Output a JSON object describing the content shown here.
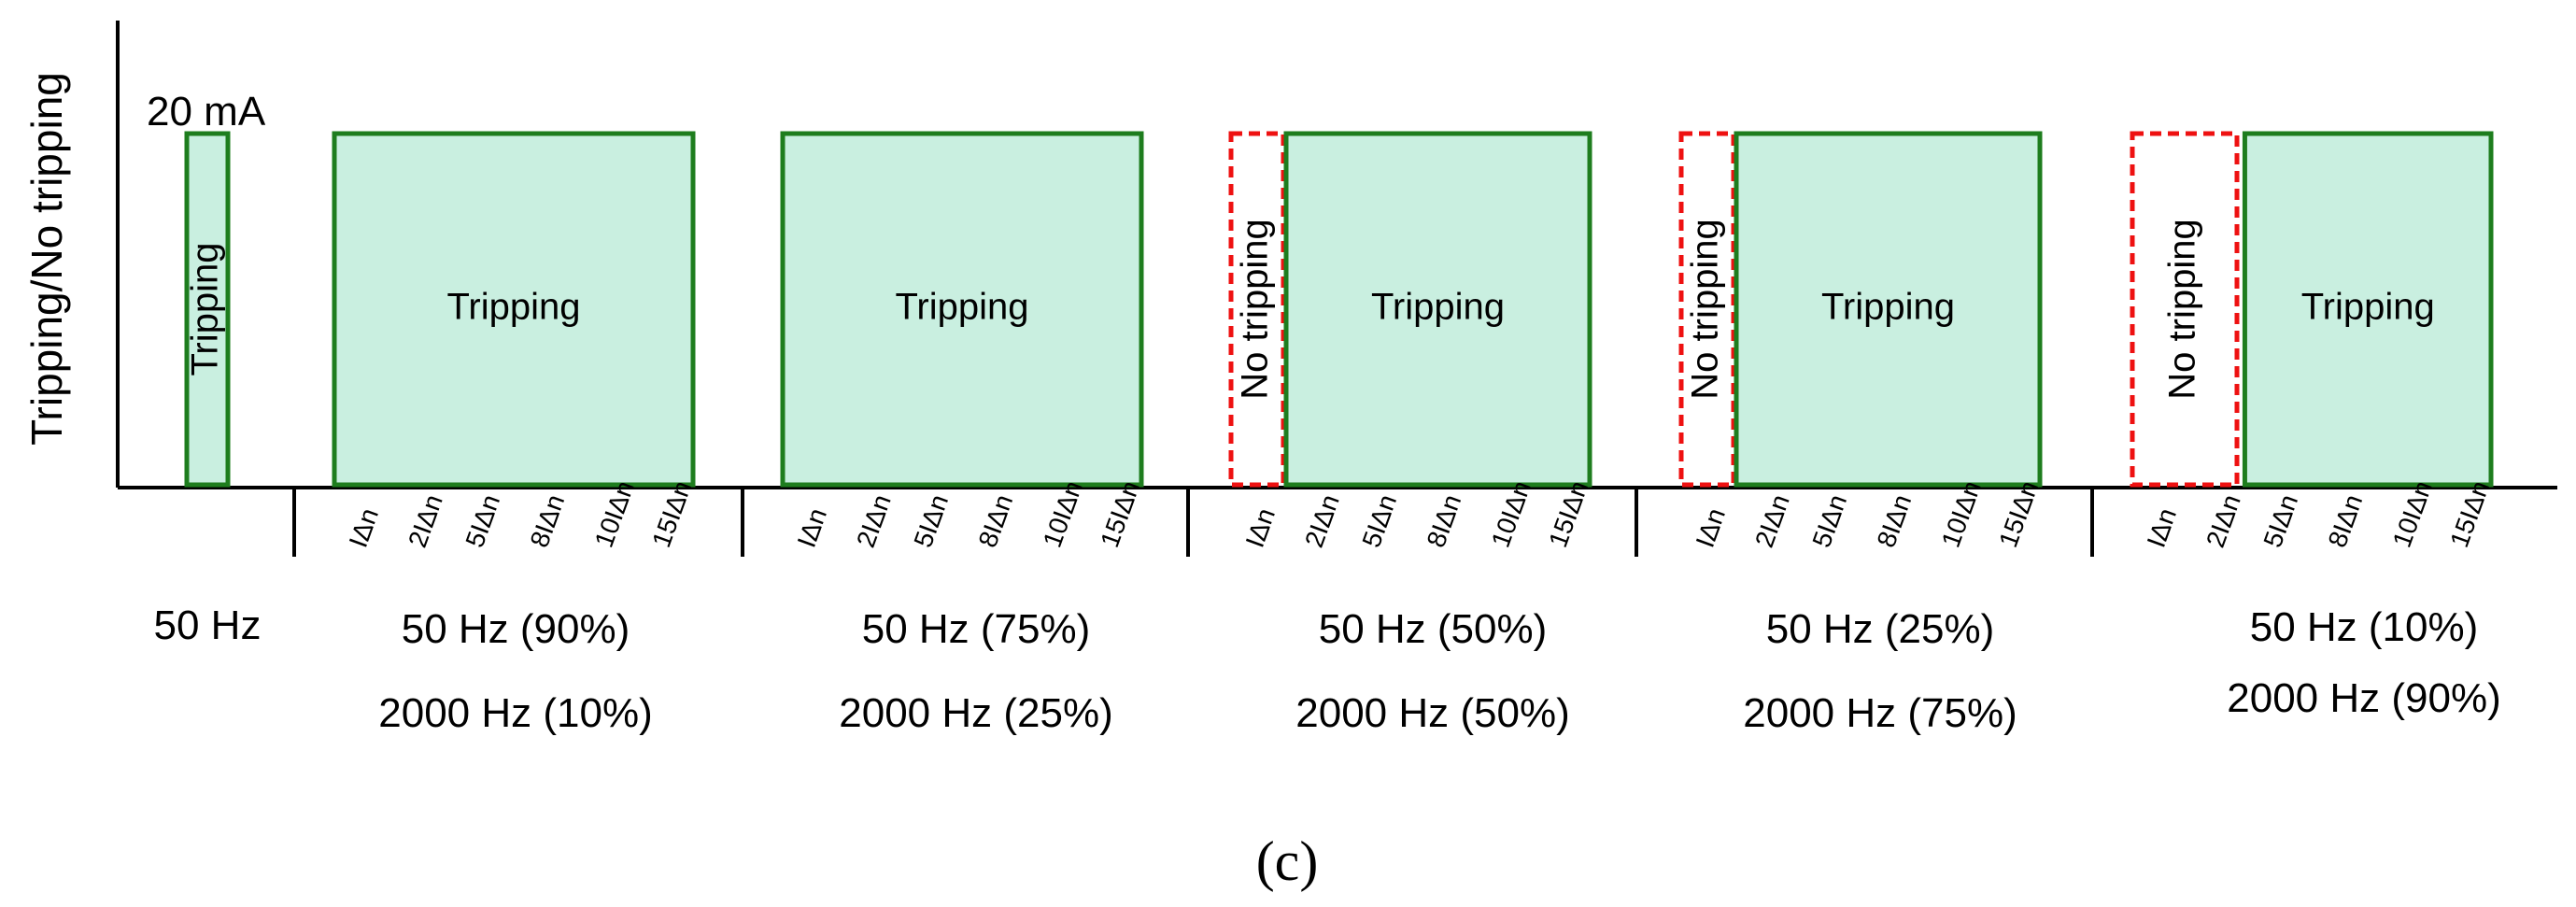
{
  "chart_data": {
    "type": "bar",
    "title": "",
    "ylabel": "Tripping/No tripping",
    "annotation": "20 mA",
    "caption": "(c)",
    "tick_labels": [
      "IΔn",
      "2IΔn",
      "5IΔn",
      "8IΔn",
      "10IΔn",
      "15IΔn"
    ],
    "groups": [
      {
        "label_lines": [
          "50 Hz"
        ],
        "ticks": [],
        "bars": [
          {
            "from": 1,
            "to": 1,
            "state": "Tripping"
          }
        ]
      },
      {
        "label_lines": [
          "50 Hz (90%)",
          "2000 Hz (10%)"
        ],
        "ticks": [
          "IΔn",
          "2IΔn",
          "5IΔn",
          "8IΔn",
          "10IΔn",
          "15IΔn"
        ],
        "bars": [
          {
            "from": 1,
            "to": 15,
            "state": "Tripping"
          }
        ]
      },
      {
        "label_lines": [
          "50 Hz (75%)",
          "2000 Hz (25%)"
        ],
        "ticks": [
          "IΔn",
          "2IΔn",
          "5IΔn",
          "8IΔn",
          "10IΔn",
          "15IΔn"
        ],
        "bars": [
          {
            "from": 1,
            "to": 15,
            "state": "Tripping"
          }
        ]
      },
      {
        "label_lines": [
          "50 Hz (50%)",
          "2000 Hz (50%)"
        ],
        "ticks": [
          "IΔn",
          "2IΔn",
          "5IΔn",
          "8IΔn",
          "10IΔn",
          "15IΔn"
        ],
        "bars": [
          {
            "from": 1,
            "to": 1,
            "state": "No tripping"
          },
          {
            "from": 2,
            "to": 15,
            "state": "Tripping"
          }
        ]
      },
      {
        "label_lines": [
          "50 Hz (25%)",
          "2000 Hz (75%)"
        ],
        "ticks": [
          "IΔn",
          "2IΔn",
          "5IΔn",
          "8IΔn",
          "10IΔn",
          "15IΔn"
        ],
        "bars": [
          {
            "from": 1,
            "to": 1,
            "state": "No tripping"
          },
          {
            "from": 2,
            "to": 15,
            "state": "Tripping"
          }
        ]
      },
      {
        "label_lines": [
          "50 Hz (10%)",
          "2000 Hz (90%)"
        ],
        "ticks": [
          "IΔn",
          "2IΔn",
          "5IΔn",
          "8IΔn",
          "10IΔn",
          "15IΔn"
        ],
        "bars": [
          {
            "from": 1,
            "to": 2,
            "state": "No tripping"
          },
          {
            "from": 5,
            "to": 15,
            "state": "Tripping"
          }
        ]
      }
    ]
  },
  "colors": {
    "tripping_fill": "#c9efe0",
    "tripping_stroke": "#1e7d1e",
    "no_tripping_stroke": "#ee1111",
    "axis": "#000000"
  }
}
